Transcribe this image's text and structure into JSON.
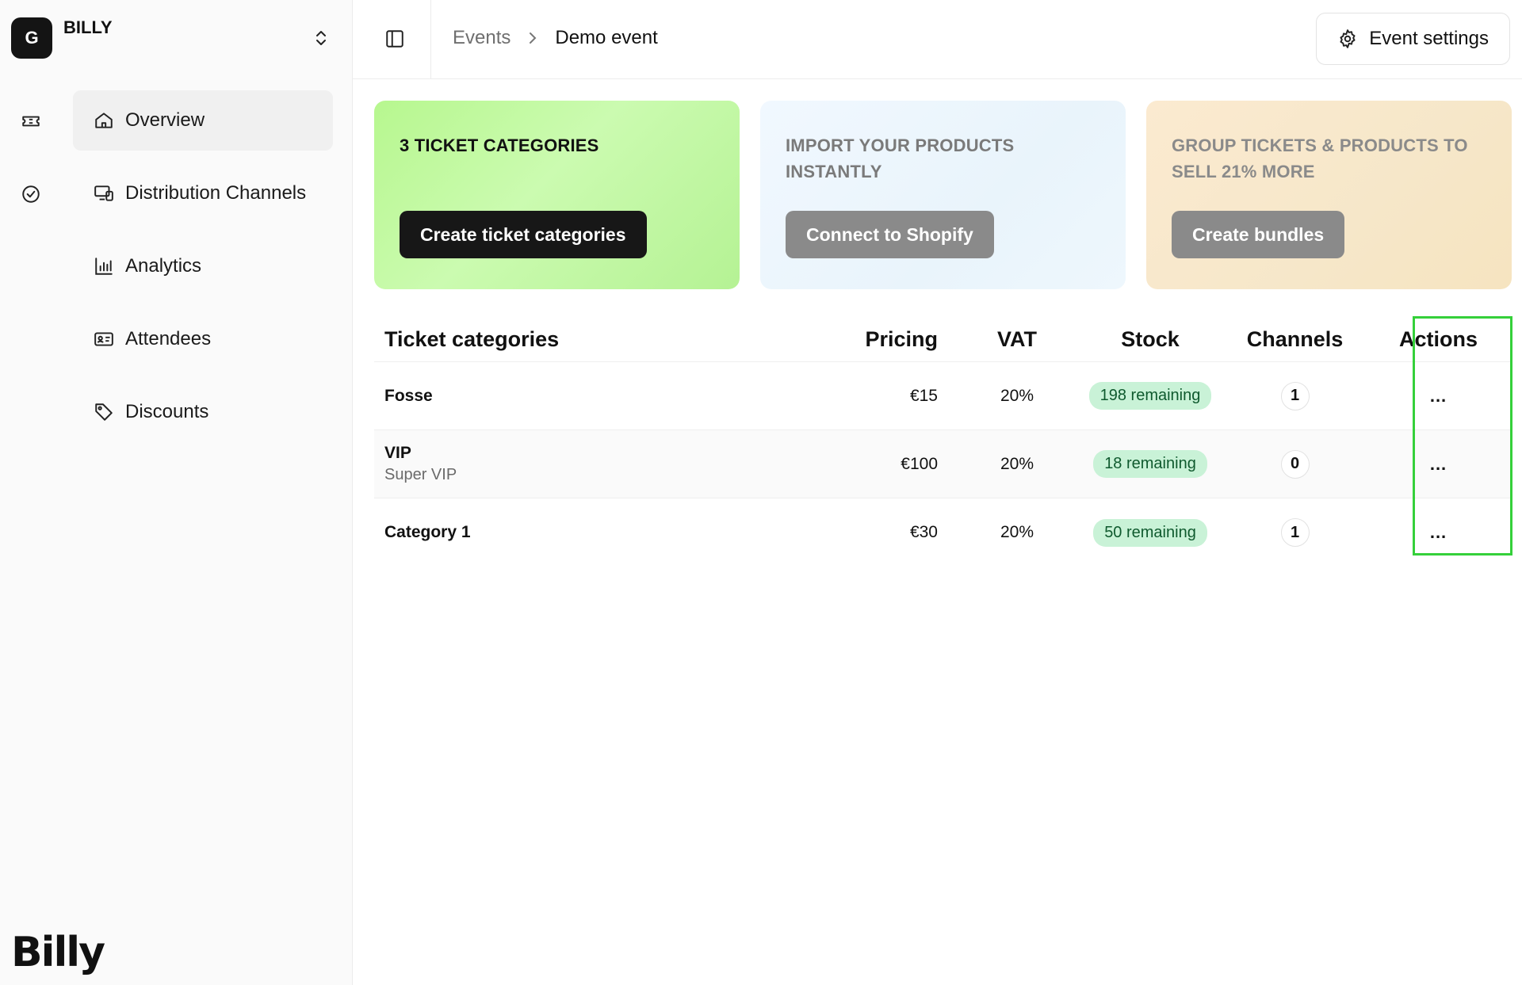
{
  "org": {
    "initial": "G",
    "name": "BILLY"
  },
  "nav": [
    {
      "label": "Overview",
      "icon": "home-icon",
      "active": true
    },
    {
      "label": "Distribution Channels",
      "icon": "devices-icon"
    },
    {
      "label": "Analytics",
      "icon": "bar-chart-icon"
    },
    {
      "label": "Attendees",
      "icon": "id-card-icon"
    },
    {
      "label": "Discounts",
      "icon": "tag-icon"
    }
  ],
  "rail": [
    "ticket-icon",
    "check-badge-icon"
  ],
  "brand": "Billy",
  "breadcrumb": {
    "parent": "Events",
    "current": "Demo event"
  },
  "settings_label": "Event settings",
  "promos": [
    {
      "title": "3 TICKET CATEGORIES",
      "cta": "Create ticket categories"
    },
    {
      "title": "IMPORT YOUR PRODUCTS INSTANTLY",
      "cta": "Connect to Shopify"
    },
    {
      "title": "GROUP TICKETS & PRODUCTS TO SELL 21% MORE",
      "cta": "Create bundles"
    }
  ],
  "table": {
    "headers": {
      "name": "Ticket categories",
      "pricing": "Pricing",
      "vat": "VAT",
      "stock": "Stock",
      "channels": "Channels",
      "actions": "Actions"
    },
    "rows": [
      {
        "name": "Fosse",
        "sub": "",
        "price": "€15",
        "vat": "20%",
        "stock": "198 remaining",
        "channels": "1",
        "actions": "..."
      },
      {
        "name": "VIP",
        "sub": "Super VIP",
        "price": "€100",
        "vat": "20%",
        "stock": "18 remaining",
        "channels": "0",
        "actions": "..."
      },
      {
        "name": "Category 1",
        "sub": "",
        "price": "€30",
        "vat": "20%",
        "stock": "50 remaining",
        "channels": "1",
        "actions": "..."
      }
    ]
  },
  "colors": {
    "highlight": "#35d03a",
    "badge_bg": "#c9f2d7",
    "primary_cta": "#171717"
  }
}
